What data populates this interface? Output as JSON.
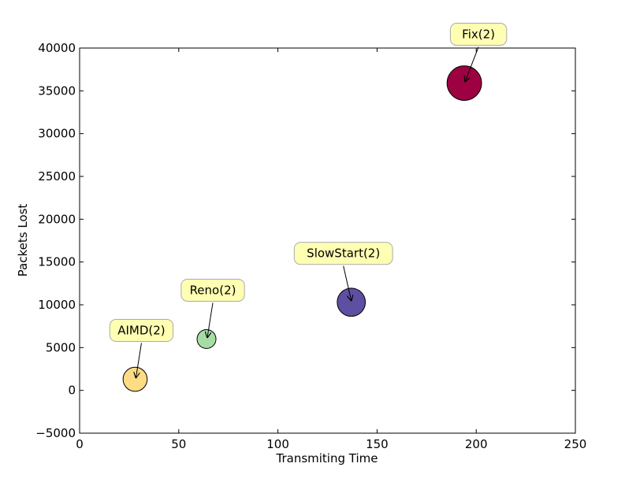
{
  "chart_data": {
    "type": "scatter",
    "title": "",
    "xlabel": "Transmiting Time",
    "ylabel": "Packets Lost",
    "xlim": [
      0,
      250
    ],
    "ylim": [
      -5000,
      40000
    ],
    "xticks": [
      0,
      50,
      100,
      150,
      200,
      250
    ],
    "yticks": [
      -5000,
      0,
      5000,
      10000,
      15000,
      20000,
      25000,
      30000,
      35000,
      40000
    ],
    "grid": false,
    "points": [
      {
        "label": "AIMD(2)",
        "x": 28,
        "y": 1300,
        "size": 2,
        "color": "#fddc86"
      },
      {
        "label": "Reno(2)",
        "x": 64,
        "y": 6000,
        "size": 1,
        "color": "#a8dca6"
      },
      {
        "label": "SlowStart(2)",
        "x": 137,
        "y": 10300,
        "size": 3,
        "color": "#5e4fa2"
      },
      {
        "label": "Fix(2)",
        "x": 194,
        "y": 35900,
        "size": 5,
        "color": "#9e0142"
      }
    ],
    "annotation_style": {
      "box_color": "#ffffb3",
      "box_edge": "#aaaaaa"
    }
  }
}
